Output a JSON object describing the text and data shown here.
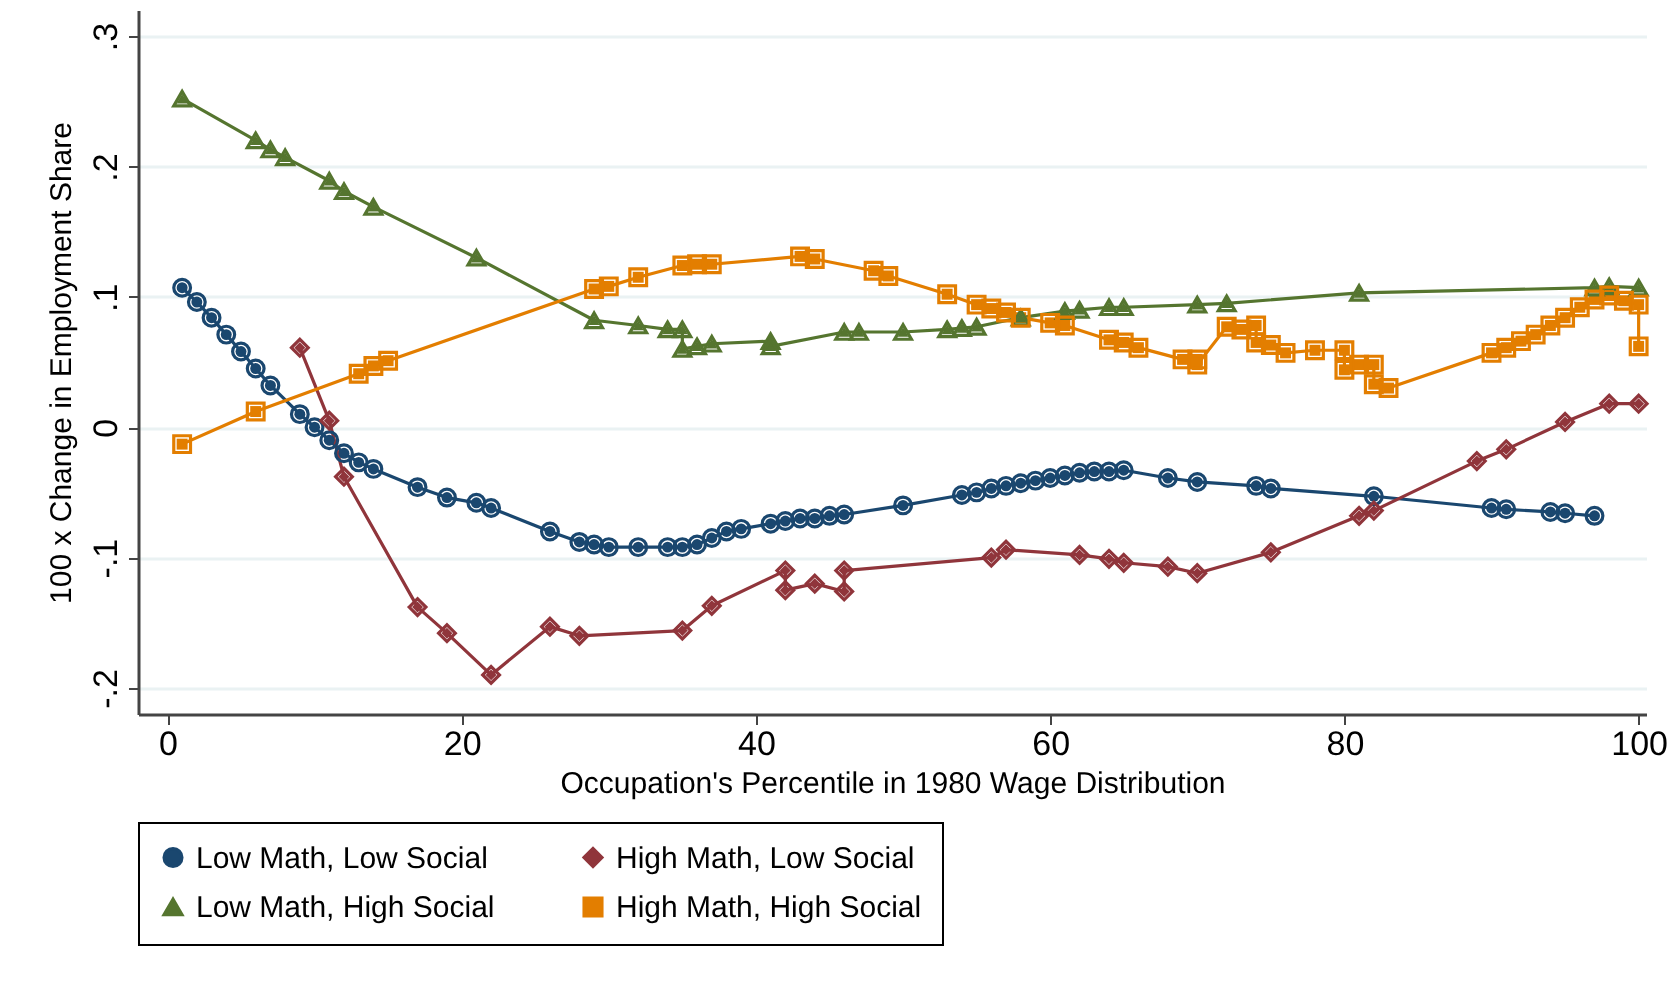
{
  "chart_data": {
    "type": "line",
    "xlabel": "Occupation's Percentile in 1980 Wage Distribution",
    "ylabel": "100 x Change in Employment Share",
    "xlim": [
      -2,
      100.5
    ],
    "ylim": [
      -0.22,
      0.32
    ],
    "xticks": [
      0,
      20,
      40,
      60,
      80,
      100
    ],
    "yticks": [
      {
        "value": -0.2,
        "label": "-.2"
      },
      {
        "value": -0.1,
        "label": "-.1"
      },
      0,
      {
        "value": 0.1,
        "label": ".1"
      },
      {
        "value": 0.2,
        "label": ".2"
      },
      {
        "value": 0.3,
        "label": ".3"
      }
    ],
    "grid": "y",
    "legend": "bottom",
    "line_style": "solid",
    "series": [
      {
        "name": "Low Math, Low Social",
        "color": "#1a476f",
        "marker": "circle",
        "x": [
          1,
          2,
          3,
          4,
          5,
          6,
          7,
          9,
          10,
          11,
          12,
          13,
          14,
          17,
          19,
          21,
          22,
          26,
          28,
          29,
          30,
          32,
          34,
          35,
          36,
          37,
          38,
          39,
          41,
          42,
          43,
          44,
          45,
          46,
          50,
          54,
          55,
          56,
          57,
          58,
          59,
          60,
          61,
          62,
          63,
          64,
          65,
          68,
          70,
          74,
          75,
          82,
          90,
          91,
          94,
          95,
          97
        ],
        "values": [
          0.107,
          0.096,
          0.084,
          0.071,
          0.058,
          0.045,
          0.032,
          0.01,
          0,
          -0.01,
          -0.02,
          -0.027,
          -0.032,
          -0.046,
          -0.054,
          -0.058,
          -0.062,
          -0.08,
          -0.088,
          -0.09,
          -0.092,
          -0.092,
          -0.092,
          -0.092,
          -0.09,
          -0.085,
          -0.08,
          -0.078,
          -0.074,
          -0.072,
          -0.07,
          -0.07,
          -0.068,
          -0.067,
          -0.06,
          -0.052,
          -0.05,
          -0.047,
          -0.045,
          -0.043,
          -0.041,
          -0.039,
          -0.037,
          -0.035,
          -0.034,
          -0.034,
          -0.033,
          -0.039,
          -0.042,
          -0.045,
          -0.047,
          -0.053,
          -0.062,
          -0.063,
          -0.065,
          -0.066,
          -0.068
        ]
      },
      {
        "name": "High Math, Low Social",
        "color": "#90353b",
        "marker": "diamond",
        "x": [
          9,
          11,
          12,
          17,
          19,
          22,
          26,
          28,
          35,
          37,
          42,
          42,
          44,
          46,
          46,
          56,
          57,
          62,
          64,
          65,
          68,
          70,
          75,
          81,
          82,
          89,
          91,
          95,
          98,
          100
        ],
        "values": [
          0.061,
          0.005,
          -0.038,
          -0.138,
          -0.158,
          -0.19,
          -0.153,
          -0.16,
          -0.156,
          -0.137,
          -0.11,
          -0.125,
          -0.12,
          -0.126,
          -0.11,
          -0.1,
          -0.094,
          -0.098,
          -0.101,
          -0.104,
          -0.107,
          -0.112,
          -0.096,
          -0.068,
          -0.064,
          -0.026,
          -0.017,
          0.004,
          0.018,
          0.018
        ]
      },
      {
        "name": "Low Math, High Social",
        "color": "#55752f",
        "marker": "triangle",
        "x": [
          1,
          6,
          7,
          8,
          11,
          12,
          14,
          21,
          29,
          32,
          34,
          35,
          35,
          36,
          37,
          41,
          41,
          46,
          47,
          50,
          53,
          54,
          55,
          58,
          61,
          62,
          64,
          65,
          70,
          72,
          81,
          97,
          98,
          100
        ],
        "values": [
          0.252,
          0.22,
          0.213,
          0.207,
          0.189,
          0.181,
          0.169,
          0.13,
          0.082,
          0.078,
          0.075,
          0.075,
          0.06,
          0.062,
          0.064,
          0.066,
          0.062,
          0.073,
          0.073,
          0.073,
          0.075,
          0.076,
          0.077,
          0.084,
          0.089,
          0.09,
          0.092,
          0.092,
          0.094,
          0.095,
          0.103,
          0.107,
          0.108,
          0.107
        ]
      },
      {
        "name": "High Math, High Social",
        "color": "#e37e00",
        "marker": "square",
        "x": [
          1,
          6,
          13,
          14,
          15,
          29,
          30,
          32,
          35,
          36,
          37,
          43,
          44,
          48,
          49,
          53,
          55,
          56,
          57,
          58,
          60,
          61,
          64,
          65,
          66,
          69,
          70,
          70,
          72,
          73,
          74,
          74,
          75,
          76,
          78,
          80,
          80,
          81,
          82,
          82,
          83,
          90,
          91,
          92,
          93,
          94,
          95,
          96,
          97,
          98,
          99,
          100,
          100
        ],
        "values": [
          -0.013,
          0.012,
          0.041,
          0.047,
          0.051,
          0.106,
          0.108,
          0.115,
          0.124,
          0.125,
          0.125,
          0.131,
          0.129,
          0.12,
          0.116,
          0.102,
          0.094,
          0.091,
          0.088,
          0.084,
          0.08,
          0.078,
          0.067,
          0.065,
          0.061,
          0.052,
          0.052,
          0.048,
          0.077,
          0.075,
          0.078,
          0.065,
          0.063,
          0.057,
          0.059,
          0.059,
          0.044,
          0.048,
          0.048,
          0.033,
          0.03,
          0.057,
          0.061,
          0.066,
          0.071,
          0.078,
          0.084,
          0.092,
          0.098,
          0.101,
          0.097,
          0.094,
          0.062
        ]
      }
    ]
  }
}
